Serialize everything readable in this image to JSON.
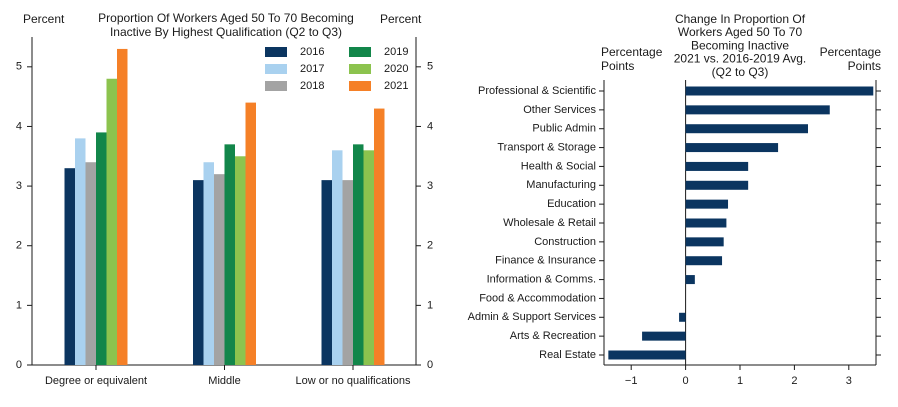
{
  "chart_data": [
    {
      "type": "bar",
      "title": "Proportion Of Workers Aged 50 To 70 Becoming Inactive By Highest Qualification (Q2 to Q3)",
      "title_lines": [
        "Proportion Of Workers Aged 50 To 70 Becoming",
        "Inactive By Highest Qualification (Q2 to Q3)"
      ],
      "ylabel_left": "Percent",
      "ylabel_right": "Percent",
      "xlabel": "",
      "ylim": [
        0,
        5.5
      ],
      "yticks": [
        0,
        1,
        2,
        3,
        4,
        5
      ],
      "categories": [
        "Degree or equivalent",
        "Middle",
        "Low or no qualifications"
      ],
      "legend_position": "top-right",
      "series": [
        {
          "name": "2016",
          "color": "#0b3560",
          "values": [
            3.3,
            3.1,
            3.1
          ]
        },
        {
          "name": "2017",
          "color": "#a9d1ef",
          "values": [
            3.8,
            3.4,
            3.6
          ]
        },
        {
          "name": "2018",
          "color": "#a3a3a3",
          "values": [
            3.4,
            3.2,
            3.1
          ]
        },
        {
          "name": "2019",
          "color": "#12864a",
          "values": [
            3.9,
            3.7,
            3.7
          ]
        },
        {
          "name": "2020",
          "color": "#8cc34e",
          "values": [
            4.8,
            3.5,
            3.6
          ]
        },
        {
          "name": "2021",
          "color": "#f58027",
          "values": [
            5.3,
            4.4,
            4.3
          ]
        }
      ]
    },
    {
      "type": "bar",
      "orientation": "horizontal",
      "title": "Change In Proportion Of Workers Aged 50 To 70 Becoming Inactive 2021 vs. 2016-2019 Avg. (Q2 to Q3)",
      "title_lines": [
        "Change In Proportion Of",
        "Workers Aged 50 To 70",
        "Becoming Inactive",
        "2021 vs. 2016-2019 Avg.",
        "(Q2 to Q3)"
      ],
      "xlabel_left": "Percentage Points",
      "xlabel_right": "Percentage Points",
      "xlim": [
        -1.5,
        3.5
      ],
      "xticks": [
        -1,
        0,
        1,
        2,
        3
      ],
      "xtick_labels": [
        "−1",
        "0",
        "1",
        "2",
        "3"
      ],
      "color": "#0b3560",
      "categories": [
        "Professional & Scientific",
        "Other Services",
        "Public Admin",
        "Transport & Storage",
        "Health & Social",
        "Manufacturing",
        "Education",
        "Wholesale & Retail",
        "Construction",
        "Finance & Insurance",
        "Information & Comms.",
        "Food & Accommodation",
        "Admin & Support Services",
        "Arts & Recreation",
        "Real Estate"
      ],
      "values": [
        3.45,
        2.65,
        2.25,
        1.7,
        1.15,
        1.15,
        0.78,
        0.75,
        0.7,
        0.67,
        0.17,
        0.0,
        -0.12,
        -0.8,
        -1.42
      ]
    }
  ]
}
